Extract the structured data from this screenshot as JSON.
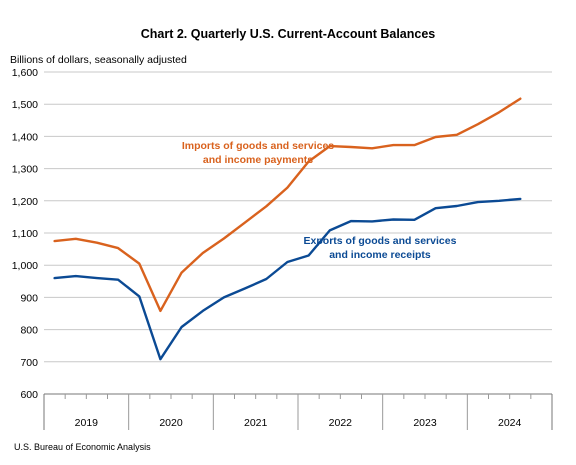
{
  "chart_data": {
    "type": "line",
    "title": "Chart 2. Quarterly U.S. Current-Account Balances",
    "ylabel": "Billions of dollars, seasonally adjusted",
    "source": "U.S. Bureau of Economic Analysis",
    "ylim": [
      600,
      1600
    ],
    "yticks": [
      600,
      700,
      800,
      900,
      1000,
      1100,
      1200,
      1300,
      1400,
      1500,
      1600
    ],
    "ytick_labels": [
      "600",
      "700",
      "800",
      "900",
      "1,000",
      "1,100",
      "1,200",
      "1,300",
      "1,400",
      "1,500",
      "1,600"
    ],
    "years": [
      "2019",
      "2020",
      "2021",
      "2022",
      "2023",
      "2024"
    ],
    "quarters": [
      "2019 Q1",
      "2019 Q2",
      "2019 Q3",
      "2019 Q4",
      "2020 Q1",
      "2020 Q2",
      "2020 Q3",
      "2020 Q4",
      "2021 Q1",
      "2021 Q2",
      "2021 Q3",
      "2021 Q4",
      "2022 Q1",
      "2022 Q2",
      "2022 Q3",
      "2022 Q4",
      "2023 Q1",
      "2023 Q2",
      "2023 Q3",
      "2023 Q4",
      "2024 Q1",
      "2024 Q2",
      "2024 Q3",
      "2024 Q4"
    ],
    "grid": true,
    "series": [
      {
        "name": "Imports of goods and services and income payments",
        "label_lines": [
          "Imports of goods and services",
          "and income payments"
        ],
        "color": "#d9621e",
        "values": [
          1075,
          1082,
          1070,
          1053,
          1005,
          858,
          977,
          1038,
          1083,
          1133,
          1183,
          1241,
          1322,
          1370,
          1367,
          1363,
          1373,
          1373,
          1398,
          1405,
          1438,
          1475,
          1517,
          null
        ]
      },
      {
        "name": "Exports of goods and services and income receipts",
        "label_lines": [
          "Exports of goods and services",
          "and income receipts"
        ],
        "color": "#0b4a94",
        "values": [
          960,
          966,
          960,
          955,
          903,
          708,
          808,
          858,
          900,
          928,
          957,
          1010,
          1030,
          1108,
          1137,
          1136,
          1142,
          1141,
          1177,
          1184,
          1196,
          1200,
          1206,
          null
        ]
      }
    ]
  }
}
